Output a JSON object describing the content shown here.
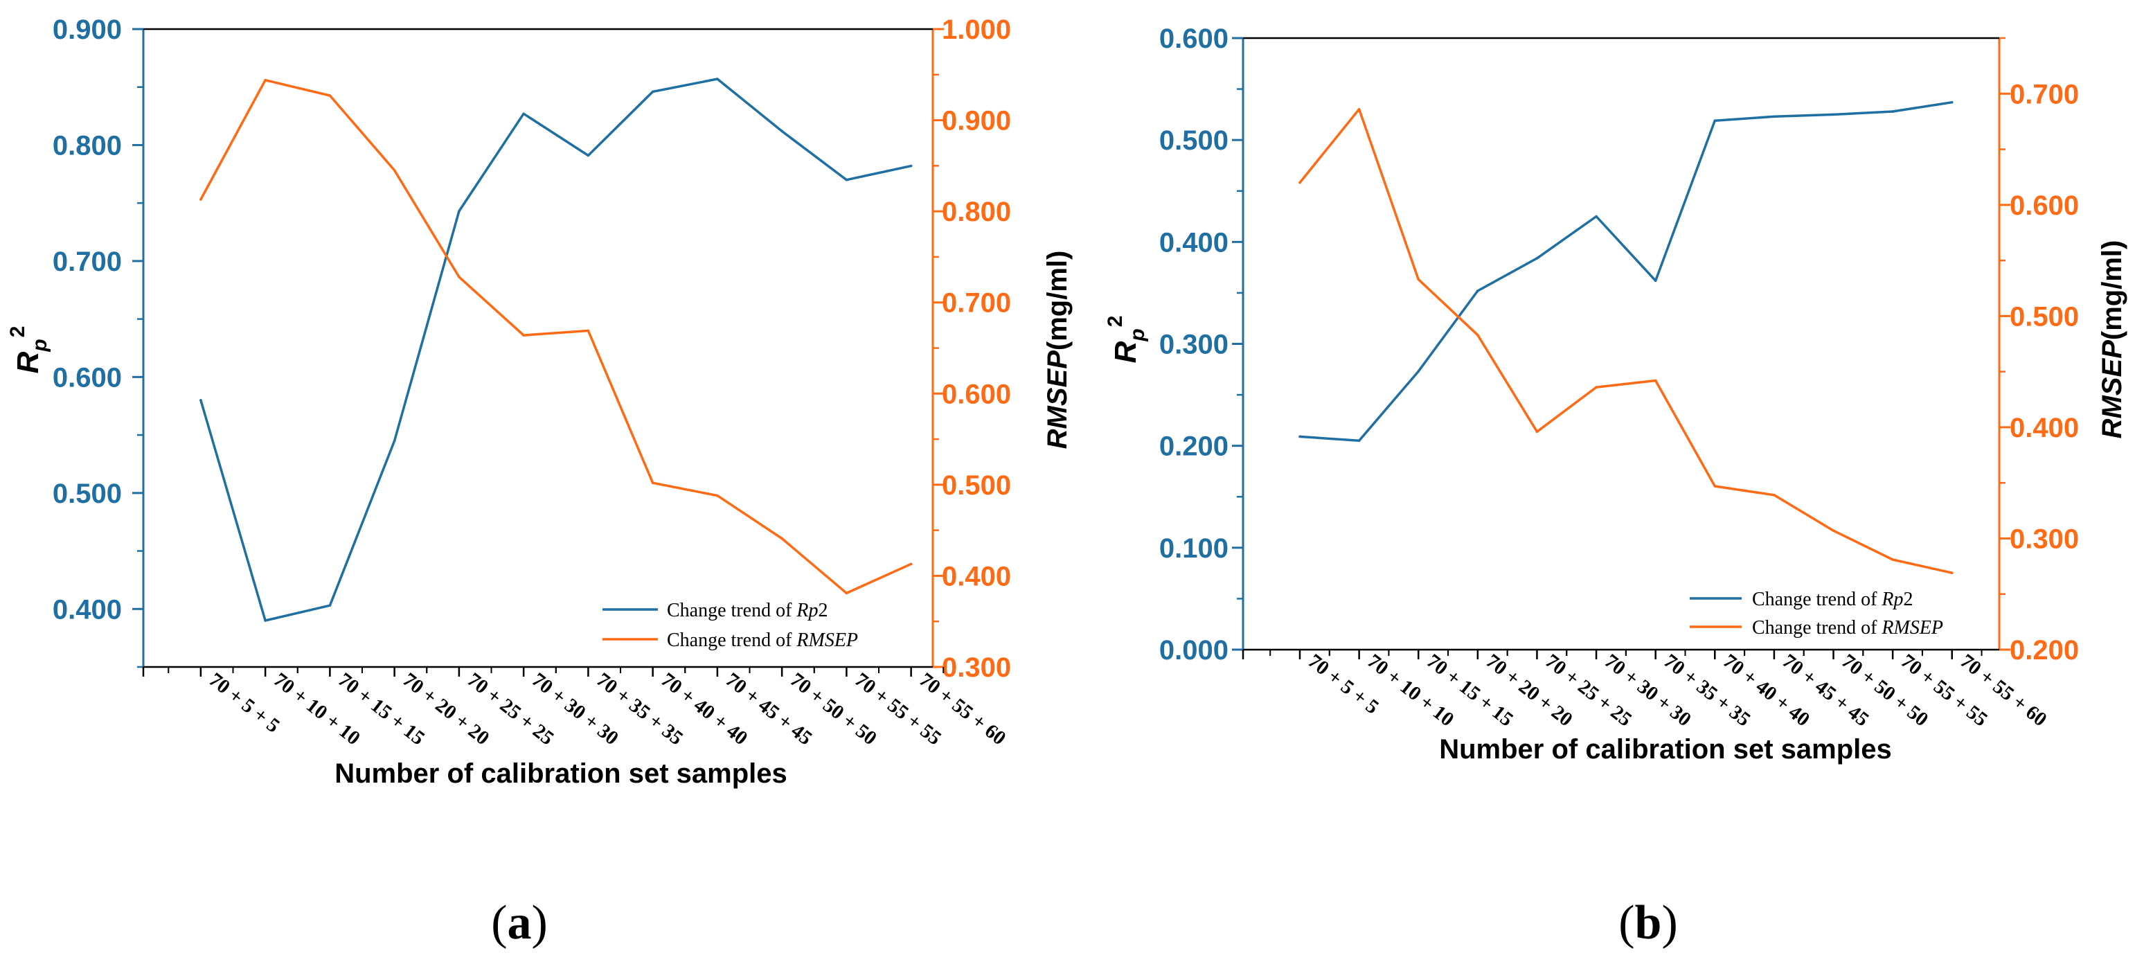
{
  "colors": {
    "rp2": "#1f6fa3",
    "rmsep": "#ff6a14",
    "frame": "#000000"
  },
  "chart_data": [
    {
      "type": "line",
      "panel_label": "a",
      "xlabel": "Number of calibration set samples",
      "ylabel_left_base": "R",
      "ylabel_left_sub": "p",
      "ylabel_left_sup": "2",
      "ylabel_right_italic": "RMSEP",
      "ylabel_right_unit": "(mg/ml)",
      "categories": [
        "70 + 5 + 5",
        "70 + 10 + 10",
        "70 + 15 + 15",
        "70 + 20 + 20",
        "70 + 25 + 25",
        "70 + 30 + 30",
        "70 + 35 + 35",
        "70 + 40 + 40",
        "70 + 45 + 45",
        "70 + 50 + 50",
        "70 + 55 + 55",
        "70 + 55 + 60"
      ],
      "ylim_left": [
        0.35,
        0.9
      ],
      "left_ticks": [
        "0.400",
        "0.500",
        "0.600",
        "0.700",
        "0.800",
        "0.900"
      ],
      "ylim_right": [
        0.3,
        1.0
      ],
      "right_ticks": [
        "0.300",
        "0.400",
        "0.500",
        "0.600",
        "0.700",
        "0.800",
        "0.900",
        "1.000"
      ],
      "series": [
        {
          "name": "Change trend of Rp2",
          "legend_prefix": "Change trend of ",
          "legend_italic": "Rp",
          "legend_suffix": "2",
          "axis": "left",
          "values": [
            0.58,
            0.39,
            0.403,
            0.545,
            0.743,
            0.827,
            0.791,
            0.846,
            0.857,
            0.812,
            0.77,
            0.782
          ]
        },
        {
          "name": "Change trend of RMSEP",
          "legend_prefix": "Change trend of ",
          "legend_italic": "RMSEP",
          "legend_suffix": "",
          "axis": "right",
          "values": [
            0.813,
            0.944,
            0.927,
            0.845,
            0.728,
            0.664,
            0.669,
            0.502,
            0.488,
            0.441,
            0.381,
            0.413
          ]
        }
      ]
    },
    {
      "type": "line",
      "panel_label": "b",
      "xlabel": "Number of calibration set samples",
      "ylabel_left_base": "R",
      "ylabel_left_sub": "p",
      "ylabel_left_sup": "2",
      "ylabel_right_italic": "RMSEP",
      "ylabel_right_unit": "(mg/ml)",
      "categories": [
        "70 + 5 + 5",
        "70 + 10 + 10",
        "70 + 15 + 15",
        "70 + 20 + 20",
        "70 + 25 + 25",
        "70 + 30 + 30",
        "70 + 35 + 35",
        "70 + 40 + 40",
        "70 + 45 + 45",
        "70 + 50 + 50",
        "70 + 55 + 55",
        "70 + 55 + 60"
      ],
      "ylim_left": [
        0.0,
        0.6
      ],
      "left_ticks": [
        "0.000",
        "0.100",
        "0.200",
        "0.300",
        "0.400",
        "0.500",
        "0.600"
      ],
      "ylim_right": [
        0.2,
        0.75
      ],
      "right_ticks": [
        "0.200",
        "0.300",
        "0.400",
        "0.500",
        "0.600",
        "0.700"
      ],
      "series": [
        {
          "name": "Change trend of Rp2",
          "legend_prefix": "Change trend of ",
          "legend_italic": "Rp",
          "legend_suffix": "2",
          "axis": "left",
          "values": [
            0.209,
            0.205,
            0.273,
            0.352,
            0.384,
            0.425,
            0.362,
            0.519,
            0.523,
            0.525,
            0.528,
            0.537
          ]
        },
        {
          "name": "Change trend of RMSEP",
          "legend_prefix": "Change trend of ",
          "legend_italic": "RMSEP",
          "legend_suffix": "",
          "axis": "right",
          "values": [
            0.62,
            0.686,
            0.533,
            0.483,
            0.396,
            0.436,
            0.442,
            0.347,
            0.339,
            0.307,
            0.281,
            0.269
          ]
        }
      ]
    }
  ]
}
